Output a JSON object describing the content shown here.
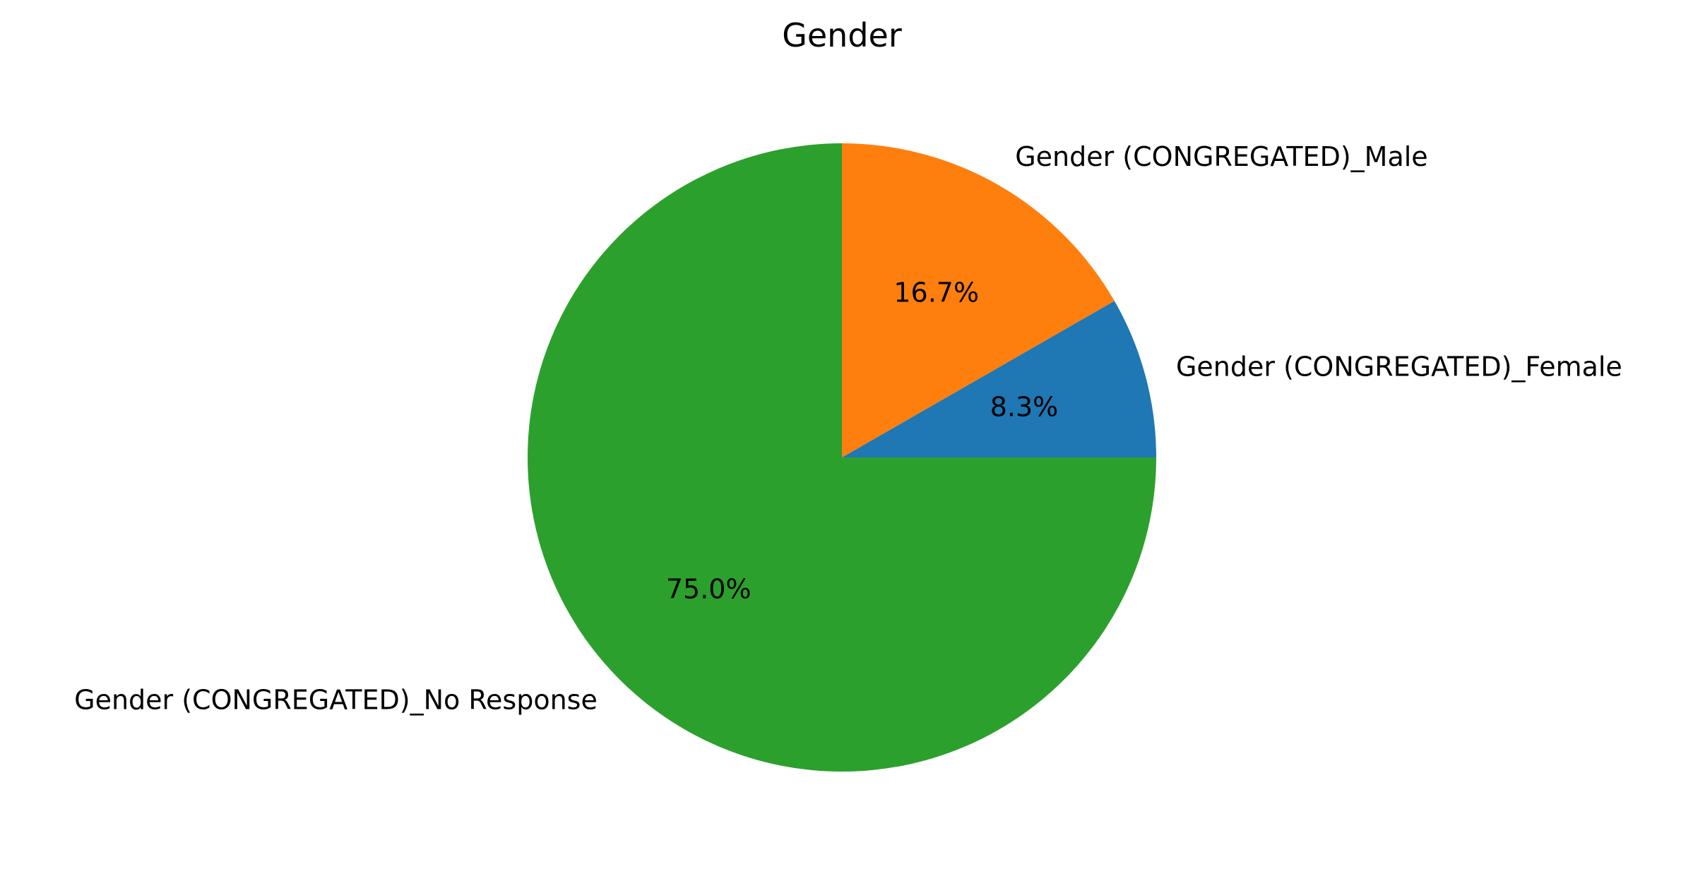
{
  "chart_data": {
    "type": "pie",
    "title": "Gender",
    "start_angle_deg": 0,
    "direction": "counterclockwise",
    "slices": [
      {
        "label": "Gender (CONGREGATED)_Female",
        "value": 8.3,
        "pct_label": "8.3%",
        "color": "#1f77b4"
      },
      {
        "label": "Gender (CONGREGATED)_Male",
        "value": 16.7,
        "pct_label": "16.7%",
        "color": "#ff7f0e"
      },
      {
        "label": "Gender (CONGREGATED)_No Response",
        "value": 75.0,
        "pct_label": "75.0%",
        "color": "#2ca02c"
      }
    ]
  }
}
